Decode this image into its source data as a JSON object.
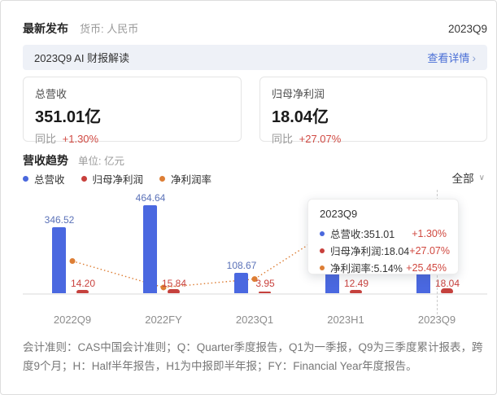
{
  "header": {
    "title": "最新发布",
    "currency": "货币: 人民币",
    "period": "2023Q9"
  },
  "banner": {
    "title": "2023Q9 AI 财报解读",
    "link": "查看详情",
    "chevron_right": "›"
  },
  "cards": [
    {
      "title": "总营收",
      "value": "351.01亿",
      "yoy_label": "同比",
      "yoy_value": "+1.30%"
    },
    {
      "title": "归母净利润",
      "value": "18.04亿",
      "yoy_label": "同比",
      "yoy_value": "+27.07%"
    }
  ],
  "section": {
    "title": "营收趋势",
    "unit": "单位: 亿元"
  },
  "filter": {
    "label": "全部",
    "chevron_down": "∨"
  },
  "legend": [
    {
      "label": "总营收",
      "color": "#4a68dd"
    },
    {
      "label": "归母净利润",
      "color": "#c8403c"
    },
    {
      "label": "净利润率",
      "color": "#dd7e35"
    }
  ],
  "chart_data": {
    "type": "bar",
    "title": "营收趋势",
    "unit": "亿元",
    "categories": [
      "2022Q9",
      "2022FY",
      "2023Q1",
      "2023H1",
      "2023Q9"
    ],
    "series": [
      {
        "name": "总营收",
        "type": "bar",
        "color": "#4a68e0",
        "values": [
          346.52,
          464.64,
          108.67,
          242.3,
          351.01
        ],
        "labels": [
          "346.52",
          "464.64",
          "108.67",
          "",
          ""
        ]
      },
      {
        "name": "归母净利润",
        "type": "bar",
        "color": "#c5413d",
        "values": [
          14.2,
          15.84,
          3.95,
          12.49,
          18.04
        ],
        "labels": [
          "14.20",
          "15.84",
          "3.95",
          "12.49",
          "18.04"
        ]
      },
      {
        "name": "净利润率",
        "type": "line",
        "color": "#dd7e35",
        "values_pct": [
          4.1,
          3.41,
          3.63,
          5.15,
          5.14
        ]
      }
    ],
    "highlight_category": "2023Q9",
    "legend_position": "top-left",
    "grid": false
  },
  "tooltip": {
    "title": "2023Q9",
    "rows": [
      {
        "color": "#4a68dd",
        "label": "总营收:351.01",
        "change": "+1.30%"
      },
      {
        "color": "#c8403c",
        "label": "归母净利润:18.04",
        "change": "+27.07%"
      },
      {
        "color": "#dd7e35",
        "label": "净利润率:5.14%",
        "change": "+25.45%"
      }
    ]
  },
  "footnote": "会计准则：CAS中国会计准则；Q：Quarter季度报告，Q1为一季报，Q9为三季度累计报表，跨度9个月；H：Half半年报告，H1为中报即半年报；FY：Financial Year年度报告。"
}
